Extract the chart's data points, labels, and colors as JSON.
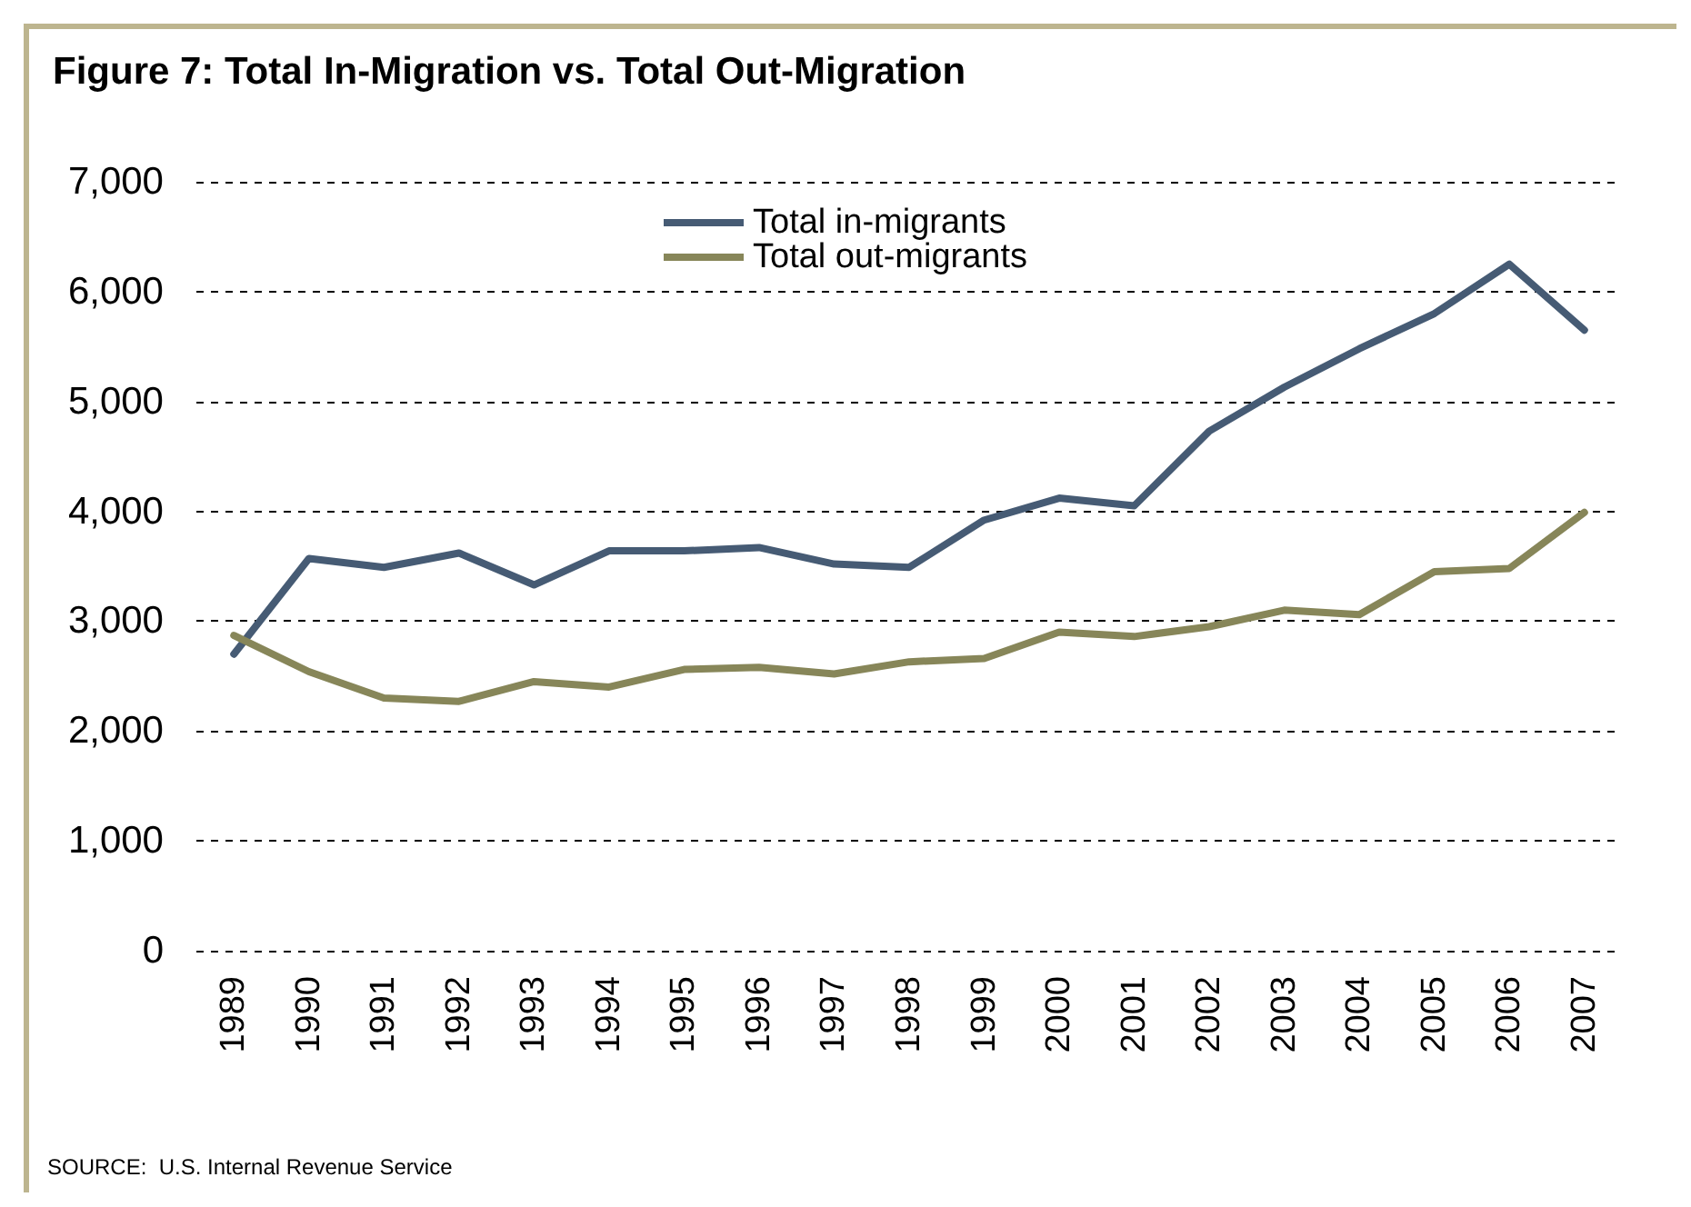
{
  "chart_data": {
    "type": "line",
    "title": "Figure 7: Total In-Migration vs. Total Out-Migration",
    "categories": [
      "1989",
      "1990",
      "1991",
      "1992",
      "1993",
      "1994",
      "1995",
      "1996",
      "1997",
      "1998",
      "1999",
      "2000",
      "2001",
      "2002",
      "2003",
      "2004",
      "2005",
      "2006",
      "2007"
    ],
    "series": [
      {
        "name": "Total in-migrants",
        "color": "#465b74",
        "values": [
          2700,
          3570,
          3490,
          3620,
          3330,
          3640,
          3640,
          3670,
          3520,
          3490,
          3920,
          4120,
          4050,
          4730,
          5130,
          5480,
          5800,
          6250,
          5650
        ]
      },
      {
        "name": "Total out-migrants",
        "color": "#878659",
        "values": [
          2870,
          2540,
          2300,
          2270,
          2450,
          2400,
          2560,
          2580,
          2520,
          2630,
          2660,
          2900,
          2860,
          2950,
          3100,
          3060,
          3450,
          3480,
          3990
        ]
      }
    ],
    "ylim": [
      0,
      7000
    ],
    "yticks": [
      0,
      {
        "value": 1000,
        "label": "1,000"
      },
      {
        "value": 2000,
        "label": "2,000"
      },
      {
        "value": 3000,
        "label": "3,000"
      },
      {
        "value": 4000,
        "label": "4,000"
      },
      {
        "value": 5000,
        "label": "5,000"
      },
      {
        "value": 6000,
        "label": "6,000"
      },
      {
        "value": 7000,
        "label": "7,000"
      }
    ],
    "grid": "y",
    "legend": "top",
    "marker": "none",
    "line_style": "solid",
    "annotations": [
      "SOURCE:  U.S. Internal Revenue Service"
    ]
  }
}
